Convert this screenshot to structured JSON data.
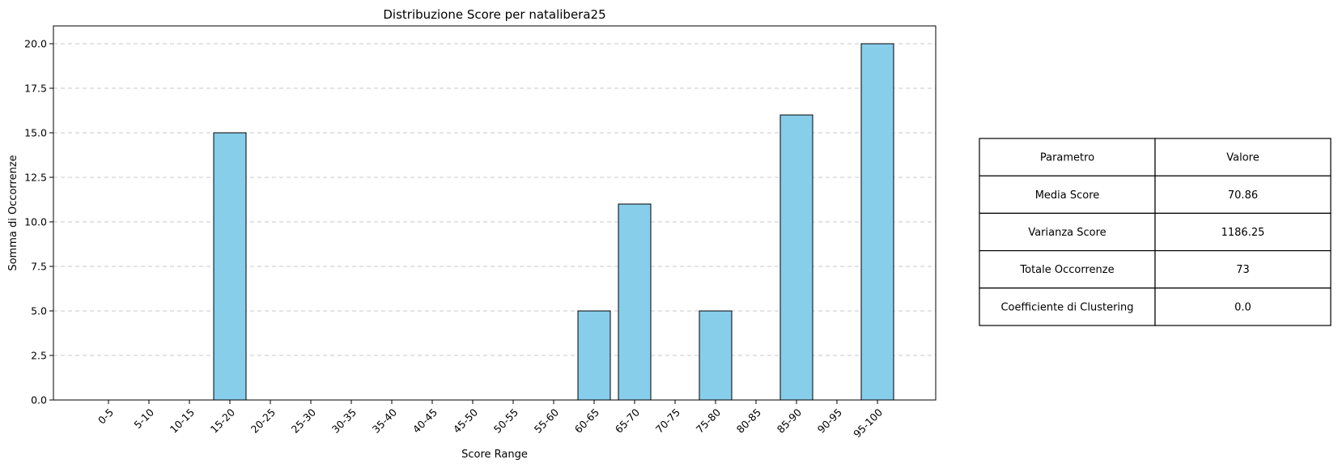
{
  "chart_data": {
    "type": "bar",
    "title": "Distribuzione Score per natalibera25",
    "xlabel": "Score Range",
    "ylabel": "Somma di Occorrenze",
    "ylim": [
      0,
      21
    ],
    "yticks": [
      "0.0",
      "2.5",
      "5.0",
      "7.5",
      "10.0",
      "12.5",
      "15.0",
      "17.5",
      "20.0"
    ],
    "grid": "horizontal dashed",
    "categories": [
      "0-5",
      "5-10",
      "10-15",
      "15-20",
      "20-25",
      "25-30",
      "30-35",
      "35-40",
      "40-45",
      "45-50",
      "50-55",
      "55-60",
      "60-65",
      "65-70",
      "70-75",
      "75-80",
      "80-85",
      "85-90",
      "90-95",
      "95-100"
    ],
    "values": [
      0,
      0,
      0,
      15,
      0,
      0,
      0,
      0,
      0,
      0,
      0,
      0,
      5,
      11,
      0,
      5,
      0,
      16,
      0,
      20
    ],
    "bar_color": "#87ceeb",
    "edge_color": "#000000"
  },
  "table": {
    "headers": [
      "Parametro",
      "Valore"
    ],
    "rows": [
      [
        "Media Score",
        "70.86"
      ],
      [
        "Varianza Score",
        "1186.25"
      ],
      [
        "Totale Occorrenze",
        "73"
      ],
      [
        "Coefficiente di Clustering",
        "0.0"
      ]
    ]
  }
}
